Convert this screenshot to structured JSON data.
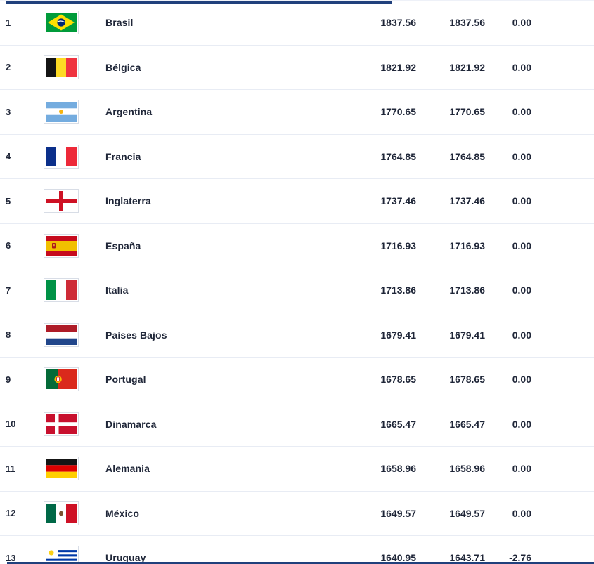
{
  "colors": {
    "accent_bar": "#20407c",
    "row_separator": "#e8ecf4",
    "text": "#1f2638",
    "flag_border": "#d8dde6"
  },
  "table": {
    "columns": [
      "rank",
      "flag",
      "country",
      "points",
      "previous_points",
      "change"
    ],
    "rows": [
      {
        "rank": "1",
        "flag": "brasil",
        "country": "Brasil",
        "points": "1837.56",
        "previous_points": "1837.56",
        "change": "0.00"
      },
      {
        "rank": "2",
        "flag": "belgica",
        "country": "Bélgica",
        "points": "1821.92",
        "previous_points": "1821.92",
        "change": "0.00"
      },
      {
        "rank": "3",
        "flag": "argentina",
        "country": "Argentina",
        "points": "1770.65",
        "previous_points": "1770.65",
        "change": "0.00"
      },
      {
        "rank": "4",
        "flag": "francia",
        "country": "Francia",
        "points": "1764.85",
        "previous_points": "1764.85",
        "change": "0.00"
      },
      {
        "rank": "5",
        "flag": "inglaterra",
        "country": "Inglaterra",
        "points": "1737.46",
        "previous_points": "1737.46",
        "change": "0.00"
      },
      {
        "rank": "6",
        "flag": "espana",
        "country": "España",
        "points": "1716.93",
        "previous_points": "1716.93",
        "change": "0.00"
      },
      {
        "rank": "7",
        "flag": "italia",
        "country": "Italia",
        "points": "1713.86",
        "previous_points": "1713.86",
        "change": "0.00"
      },
      {
        "rank": "8",
        "flag": "paises_bajos",
        "country": "Países Bajos",
        "points": "1679.41",
        "previous_points": "1679.41",
        "change": "0.00"
      },
      {
        "rank": "9",
        "flag": "portugal",
        "country": "Portugal",
        "points": "1678.65",
        "previous_points": "1678.65",
        "change": "0.00"
      },
      {
        "rank": "10",
        "flag": "dinamarca",
        "country": "Dinamarca",
        "points": "1665.47",
        "previous_points": "1665.47",
        "change": "0.00"
      },
      {
        "rank": "11",
        "flag": "alemania",
        "country": "Alemania",
        "points": "1658.96",
        "previous_points": "1658.96",
        "change": "0.00"
      },
      {
        "rank": "12",
        "flag": "mexico",
        "country": "México",
        "points": "1649.57",
        "previous_points": "1649.57",
        "change": "0.00"
      },
      {
        "rank": "13",
        "flag": "uruguay",
        "country": "Uruguay",
        "points": "1640.95",
        "previous_points": "1643.71",
        "change": "-2.76"
      }
    ]
  }
}
